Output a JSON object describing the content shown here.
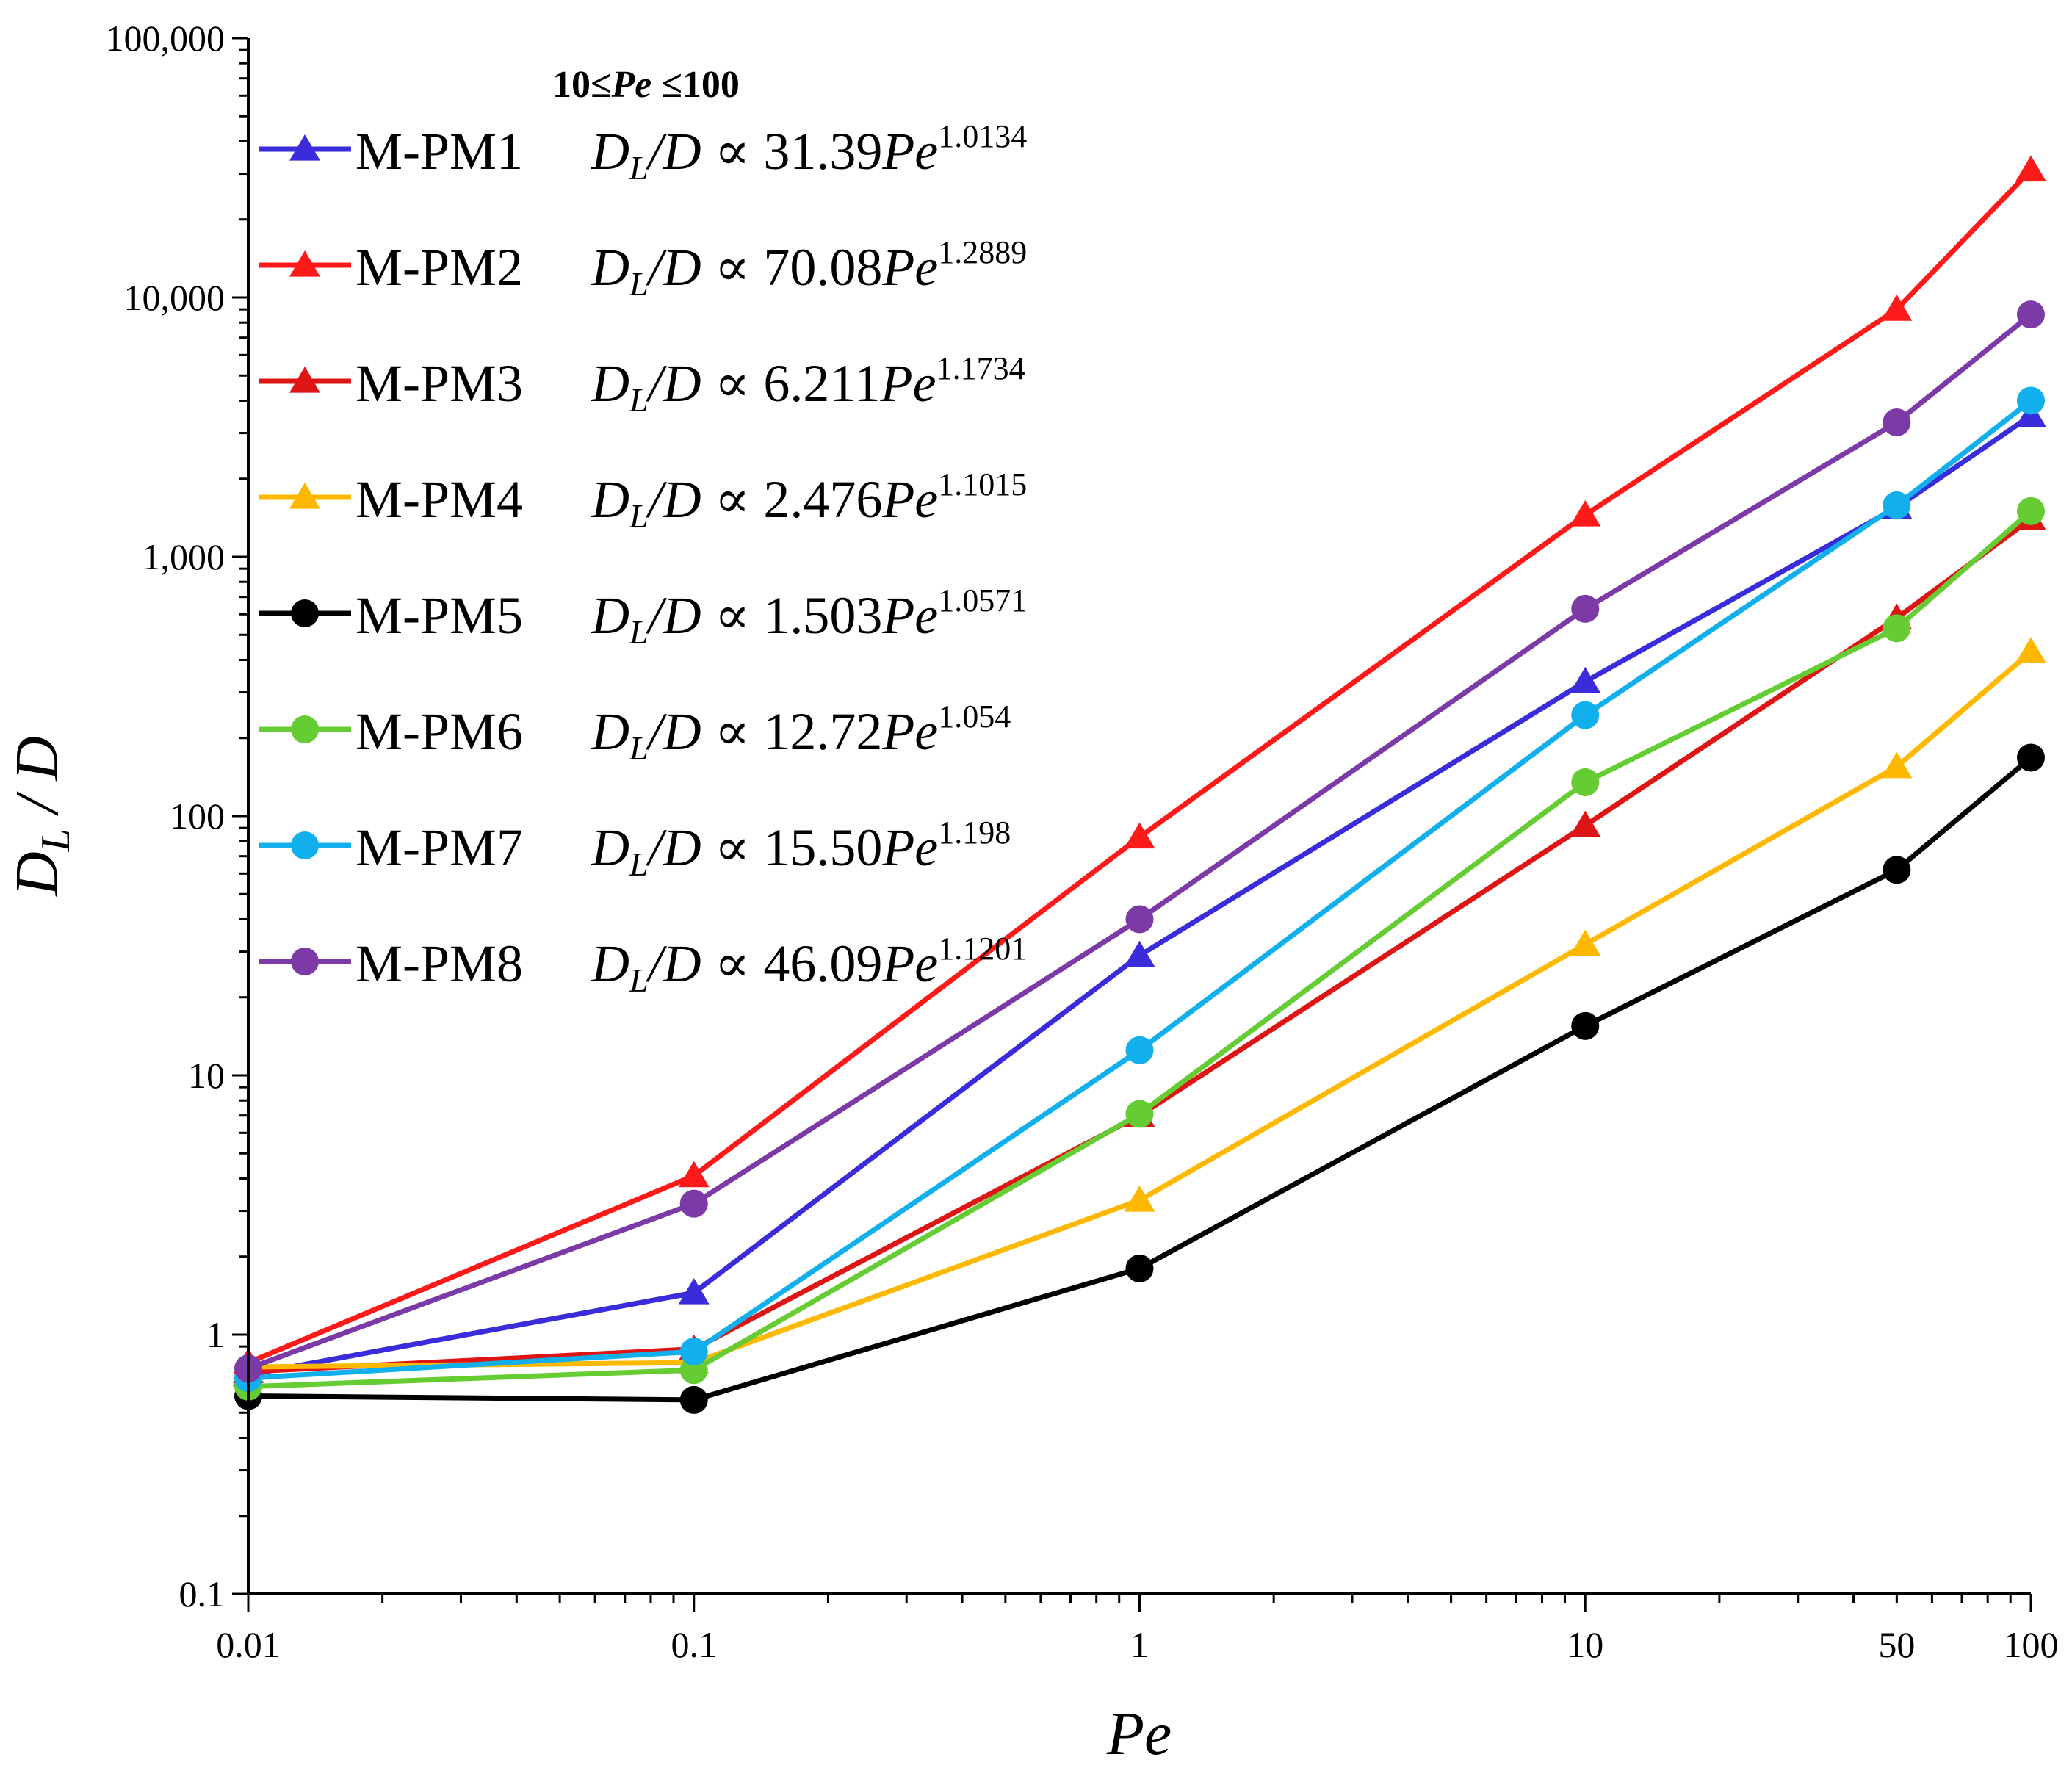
{
  "chart_data": {
    "type": "line",
    "xscale": "log",
    "yscale": "log",
    "x": [
      0.01,
      0.1,
      1,
      10,
      50,
      100
    ],
    "xlim": [
      0.01,
      100
    ],
    "ylim": [
      0.1,
      100000
    ],
    "xlabel": "Pe",
    "ylabel": {
      "main": "D",
      "sub": "L",
      "rest": " / D"
    },
    "x_tick_labels": [
      {
        "value": 0.01,
        "label": "0.01"
      },
      {
        "value": 0.1,
        "label": "0.1"
      },
      {
        "value": 1,
        "label": "1"
      },
      {
        "value": 10,
        "label": "10"
      },
      {
        "value": 50,
        "label": "50"
      },
      {
        "value": 100,
        "label": "100"
      }
    ],
    "y_tick_labels": [
      {
        "value": 0.1,
        "label": "0.1"
      },
      {
        "value": 1,
        "label": "1"
      },
      {
        "value": 10,
        "label": "10"
      },
      {
        "value": 100,
        "label": "100"
      },
      {
        "value": 1000,
        "label": "1,000"
      },
      {
        "value": 10000,
        "label": "10,000"
      },
      {
        "value": 100000,
        "label": "100,000"
      }
    ],
    "legend_header": {
      "prefix": "10≤",
      "italic": "Pe",
      "suffix": " ≤100"
    },
    "legend_placement": "top-left",
    "series": [
      {
        "name": "M-PM1",
        "color": "#3a2bdb",
        "marker": "triangle",
        "coef": "31.39",
        "exponent": "1.0134",
        "values": [
          0.7,
          1.45,
          29,
          330,
          1550,
          3500
        ]
      },
      {
        "name": "M-PM2",
        "color": "#ff1a1a",
        "marker": "triangle",
        "coef": "70.08",
        "exponent": "1.2889",
        "values": [
          0.78,
          4.1,
          83,
          1450,
          9000,
          31000
        ]
      },
      {
        "name": "M-PM3",
        "color": "#dd1515",
        "marker": "triangle",
        "coef": "6.211",
        "exponent": "1.1734",
        "values": [
          0.72,
          0.88,
          7.0,
          92,
          580,
          1400
        ]
      },
      {
        "name": "M-PM4",
        "color": "#ffb800",
        "marker": "triangle",
        "coef": "2.476",
        "exponent": "1.1015",
        "values": [
          0.75,
          0.78,
          3.3,
          32,
          155,
          430
        ]
      },
      {
        "name": "M-PM5",
        "color": "#000000",
        "marker": "circle",
        "coef": "1.503",
        "exponent": "1.0571",
        "values": [
          0.58,
          0.56,
          1.8,
          15.5,
          62,
          168
        ]
      },
      {
        "name": "M-PM6",
        "color": "#66cc33",
        "marker": "circle",
        "coef": "12.72",
        "exponent": "1.054",
        "values": [
          0.63,
          0.73,
          7.1,
          135,
          530,
          1500
        ]
      },
      {
        "name": "M-PM7",
        "color": "#11b0ec",
        "marker": "circle",
        "coef": "15.50",
        "exponent": "1.198",
        "values": [
          0.68,
          0.86,
          12.5,
          245,
          1580,
          4000
        ]
      },
      {
        "name": "M-PM8",
        "color": "#7c3aa6",
        "marker": "circle",
        "coef": "46.09",
        "exponent": "1.1201",
        "values": [
          0.74,
          3.2,
          40,
          630,
          3300,
          8600
        ]
      }
    ]
  }
}
